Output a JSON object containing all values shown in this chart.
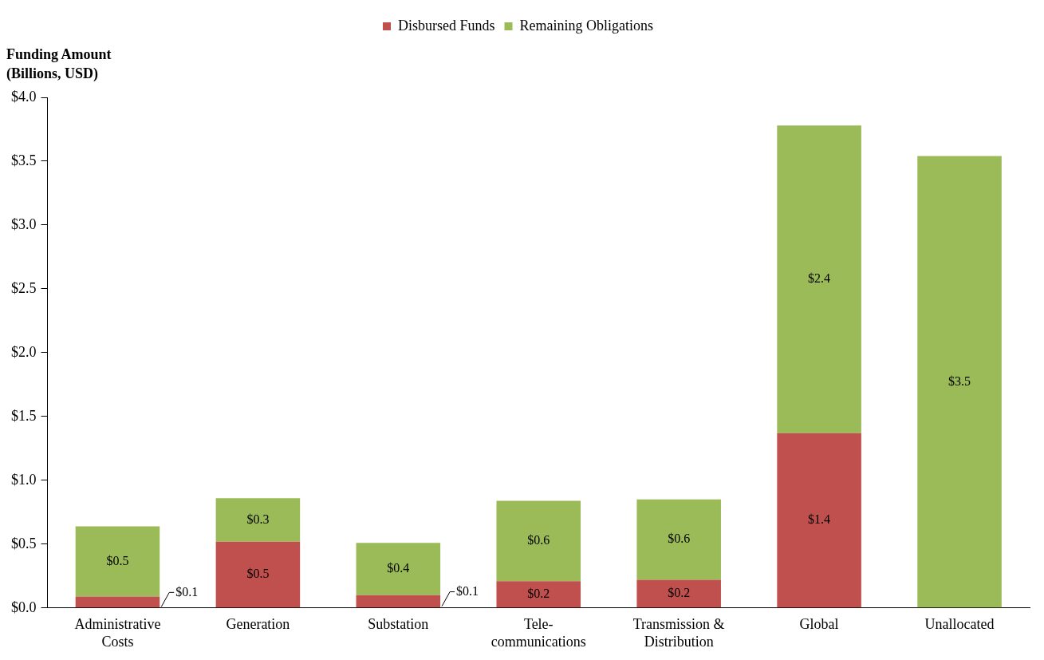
{
  "chart_data": {
    "type": "bar",
    "stacked": true,
    "ylabel": "Funding Amount (Billions, USD)",
    "categories": [
      "Administrative Costs",
      "Generation",
      "Substation",
      "Tele-communications",
      "Transmission & Distribution",
      "Global",
      "Unallocated"
    ],
    "series": [
      {
        "name": "Disbursed Funds",
        "color": "#c0504d",
        "values": [
          0.09,
          0.52,
          0.1,
          0.21,
          0.22,
          1.37,
          null
        ],
        "value_labels": [
          "$0.1",
          "$0.5",
          "$0.1",
          "$0.2",
          "$0.2",
          "$1.4",
          null
        ]
      },
      {
        "name": "Remaining Obligations",
        "color": "#9bbb59",
        "values": [
          0.55,
          0.34,
          0.41,
          0.63,
          0.63,
          2.41,
          3.54
        ],
        "value_labels": [
          "$0.5",
          "$0.3",
          "$0.4",
          "$0.6",
          "$0.6",
          "$2.4",
          "$3.5"
        ]
      }
    ],
    "ylim": [
      0,
      4
    ],
    "yticks": [
      {
        "value": 0,
        "label": "$0.0"
      },
      {
        "value": 0.5,
        "label": "$0.5"
      },
      {
        "value": 1,
        "label": "$1.0"
      },
      {
        "value": 1.5,
        "label": "$1.5"
      },
      {
        "value": 2,
        "label": "$2.0"
      },
      {
        "value": 2.5,
        "label": "$2.5"
      },
      {
        "value": 3,
        "label": "$3.0"
      },
      {
        "value": 3.5,
        "label": "$3.5"
      },
      {
        "value": 4,
        "label": "$4.0"
      }
    ],
    "grid": false,
    "legend": "top"
  }
}
